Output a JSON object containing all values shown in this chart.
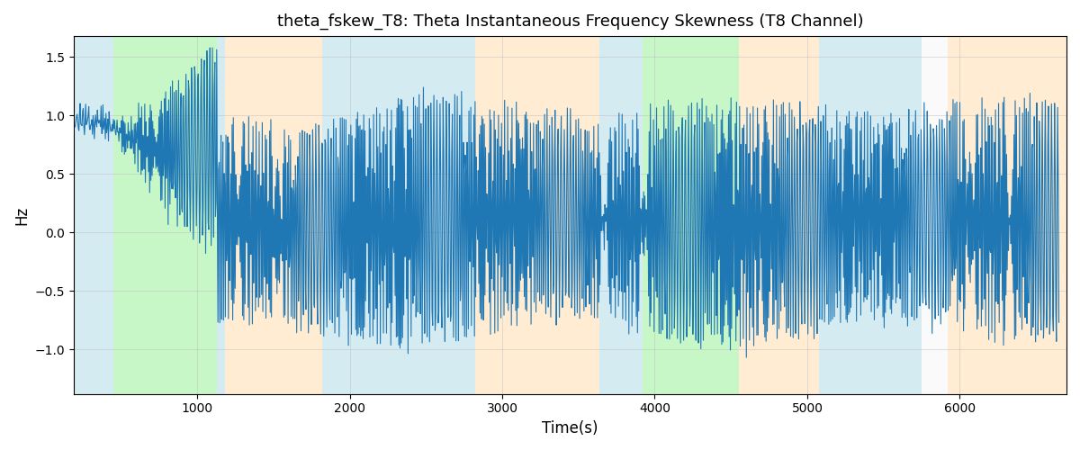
{
  "title": "theta_fskew_T8: Theta Instantaneous Frequency Skewness (T8 Channel)",
  "xlabel": "Time(s)",
  "ylabel": "Hz",
  "xlim": [
    190,
    6700
  ],
  "ylim": [
    -1.38,
    1.68
  ],
  "yticks": [
    -1.0,
    -0.5,
    0.0,
    0.5,
    1.0,
    1.5
  ],
  "xticks": [
    1000,
    2000,
    3000,
    4000,
    5000,
    6000
  ],
  "line_color": "#1f77b4",
  "background_regions": [
    {
      "xmin": 190,
      "xmax": 450,
      "color": "#add8e6",
      "alpha": 0.5
    },
    {
      "xmin": 450,
      "xmax": 1130,
      "color": "#90ee90",
      "alpha": 0.5
    },
    {
      "xmin": 1130,
      "xmax": 1180,
      "color": "#add8e6",
      "alpha": 0.5
    },
    {
      "xmin": 1180,
      "xmax": 1820,
      "color": "#ffdead",
      "alpha": 0.55
    },
    {
      "xmin": 1820,
      "xmax": 2820,
      "color": "#add8e6",
      "alpha": 0.5
    },
    {
      "xmin": 2820,
      "xmax": 2920,
      "color": "#ffdead",
      "alpha": 0.55
    },
    {
      "xmin": 2920,
      "xmax": 3640,
      "color": "#ffdead",
      "alpha": 0.55
    },
    {
      "xmin": 3640,
      "xmax": 3680,
      "color": "#add8e6",
      "alpha": 0.5
    },
    {
      "xmin": 3680,
      "xmax": 3920,
      "color": "#add8e6",
      "alpha": 0.5
    },
    {
      "xmin": 3920,
      "xmax": 4060,
      "color": "#90ee90",
      "alpha": 0.5
    },
    {
      "xmin": 4060,
      "xmax": 4550,
      "color": "#90ee90",
      "alpha": 0.5
    },
    {
      "xmin": 4550,
      "xmax": 5080,
      "color": "#ffdead",
      "alpha": 0.55
    },
    {
      "xmin": 5080,
      "xmax": 5750,
      "color": "#add8e6",
      "alpha": 0.5
    },
    {
      "xmin": 5750,
      "xmax": 5920,
      "color": "#f0f0f0",
      "alpha": 0.3
    },
    {
      "xmin": 5920,
      "xmax": 6700,
      "color": "#ffdead",
      "alpha": 0.55
    }
  ],
  "grid_color": "#c0c0c0",
  "grid_alpha": 0.7,
  "figsize": [
    12,
    5
  ],
  "dpi": 100
}
